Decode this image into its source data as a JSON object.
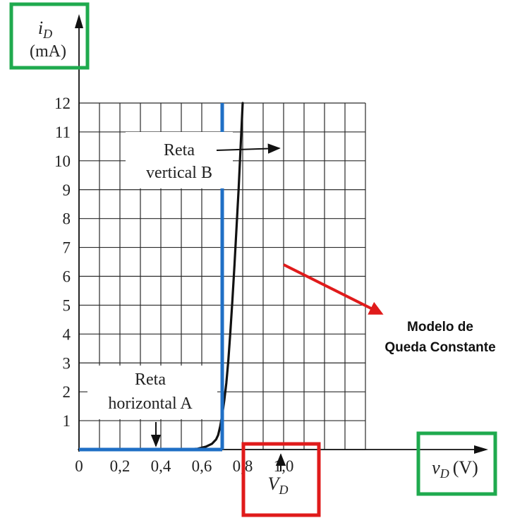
{
  "chart_data": {
    "type": "line",
    "xlim": [
      0,
      1.4
    ],
    "ylim": [
      0,
      12
    ],
    "x_ticks": [
      {
        "value": 0,
        "label": "0"
      },
      {
        "value": 0.2,
        "label": "0,2"
      },
      {
        "value": 0.4,
        "label": "0,4"
      },
      {
        "value": 0.6,
        "label": "0,6"
      },
      {
        "value": 0.8,
        "label": "0,8"
      },
      {
        "value": 1.0,
        "label": "1,0"
      }
    ],
    "y_ticks": [
      1,
      2,
      3,
      4,
      5,
      6,
      7,
      8,
      9,
      10,
      11,
      12
    ],
    "grid": true,
    "axis_labels": {
      "y_var": "i",
      "y_sub": "D",
      "y_unit": "(mA)",
      "x_var": "v",
      "x_sub": "D",
      "x_unit": "(V)",
      "vd_var": "V",
      "vd_sub": "D"
    },
    "diode_curve": {
      "x": [
        0,
        0.5,
        0.58,
        0.62,
        0.65,
        0.67,
        0.68,
        0.69,
        0.7,
        0.71,
        0.72,
        0.73,
        0.74,
        0.75,
        0.76,
        0.77,
        0.78,
        0.79,
        0.8
      ],
      "y": [
        0,
        0,
        0.03,
        0.1,
        0.2,
        0.35,
        0.5,
        0.8,
        1.2,
        1.7,
        2.3,
        3.1,
        4.1,
        5.2,
        6.4,
        7.7,
        9.0,
        10.5,
        12
      ]
    },
    "model": {
      "vd_value": 0.7,
      "color": "#1f6fc5"
    },
    "annotations": {
      "vertical_b_line1": "Reta",
      "vertical_b_line2": "vertical B",
      "horizontal_a_line1": "Reta",
      "horizontal_a_line2": "horizontal A",
      "model_label_line1": "Modelo de",
      "model_label_line2": "Queda Constante"
    },
    "highlight_colors": {
      "green": "#1faa4e",
      "red": "#e01b1b"
    }
  }
}
